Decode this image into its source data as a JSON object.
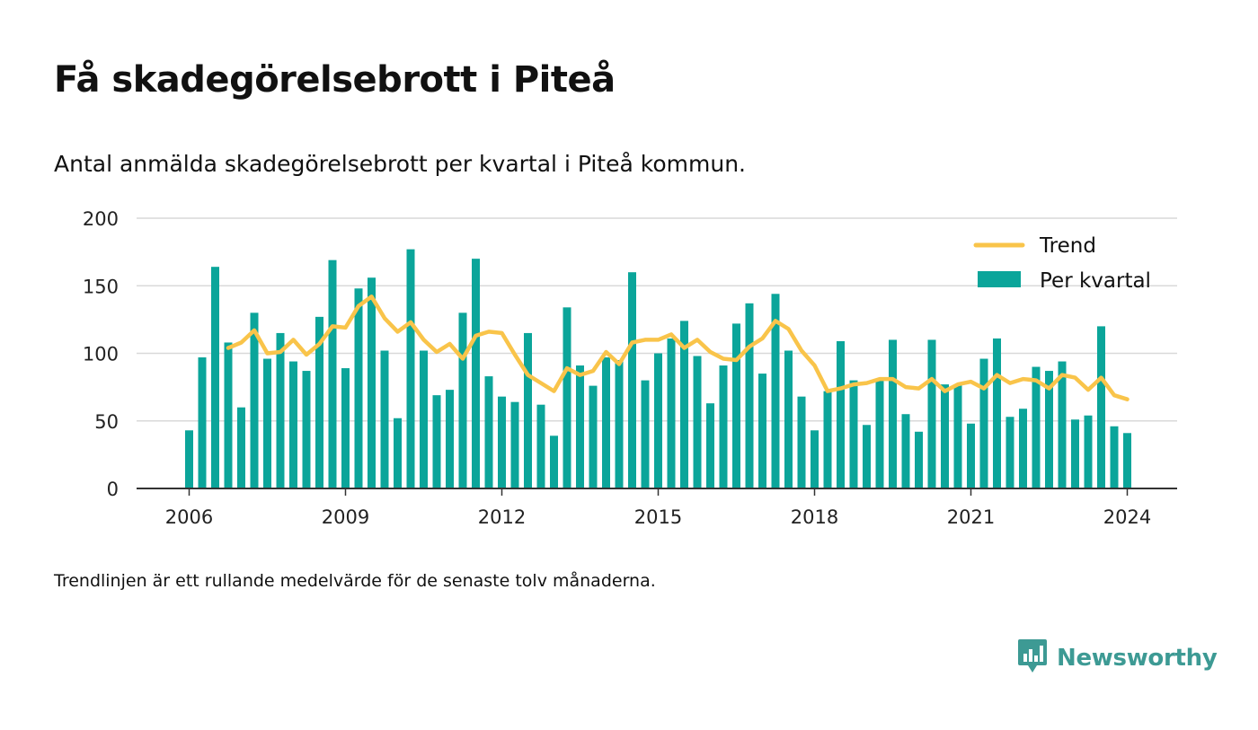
{
  "header": {
    "title": "Få skadegörelsebrott i Piteå",
    "subtitle": "Antal anmälda skadegörelsebrott per kvartal i Piteå kommun."
  },
  "footer": {
    "note": "Trendlinjen är ett rullande medelvärde för de senaste tolv månaderna.",
    "brand": "Newsworthy",
    "brand_icon": "newsworthy-logo-icon"
  },
  "colors": {
    "bar": "#0ba59a",
    "trend": "#f9c44a",
    "grid": "#d9d9d9",
    "axis": "#333333"
  },
  "chart_data": {
    "type": "bar",
    "x_start": 2006.0,
    "x_step": 0.25,
    "xticks": [
      "2006",
      "2009",
      "2012",
      "2015",
      "2018",
      "2021",
      "2024"
    ],
    "yticks": [
      "0",
      "50",
      "100",
      "150",
      "200"
    ],
    "ylim": [
      0,
      200
    ],
    "legend_position": "top-right",
    "grid": true,
    "series": [
      {
        "name": "Per kvartal",
        "type": "bar",
        "values": [
          43,
          97,
          164,
          108,
          60,
          130,
          96,
          115,
          94,
          87,
          127,
          169,
          89,
          148,
          156,
          102,
          52,
          177,
          102,
          69,
          73,
          130,
          170,
          83,
          68,
          64,
          115,
          62,
          39,
          134,
          91,
          76,
          97,
          95,
          160,
          80,
          100,
          111,
          124,
          98,
          63,
          91,
          122,
          137,
          85,
          144,
          102,
          68,
          43,
          72,
          109,
          80,
          47,
          80,
          110,
          55,
          42,
          110,
          77,
          77,
          48,
          96,
          111,
          53,
          59,
          90,
          87,
          94,
          51,
          54,
          120,
          46,
          41
        ]
      },
      {
        "name": "Trend",
        "type": "line",
        "x_start": 2006.75,
        "values": [
          104,
          108,
          117,
          100,
          101,
          110,
          99,
          107,
          120,
          119,
          135,
          142,
          126,
          116,
          123,
          110,
          101,
          107,
          96,
          113,
          116,
          115,
          99,
          84,
          78,
          72,
          89,
          84,
          87,
          101,
          92,
          108,
          110,
          110,
          114,
          104,
          110,
          101,
          96,
          95,
          105,
          111,
          124,
          118,
          102,
          91,
          72,
          74,
          77,
          78,
          81,
          81,
          75,
          74,
          81,
          72,
          77,
          79,
          74,
          84,
          78,
          81,
          80,
          74,
          84,
          82,
          73,
          82,
          69,
          66
        ]
      }
    ]
  }
}
